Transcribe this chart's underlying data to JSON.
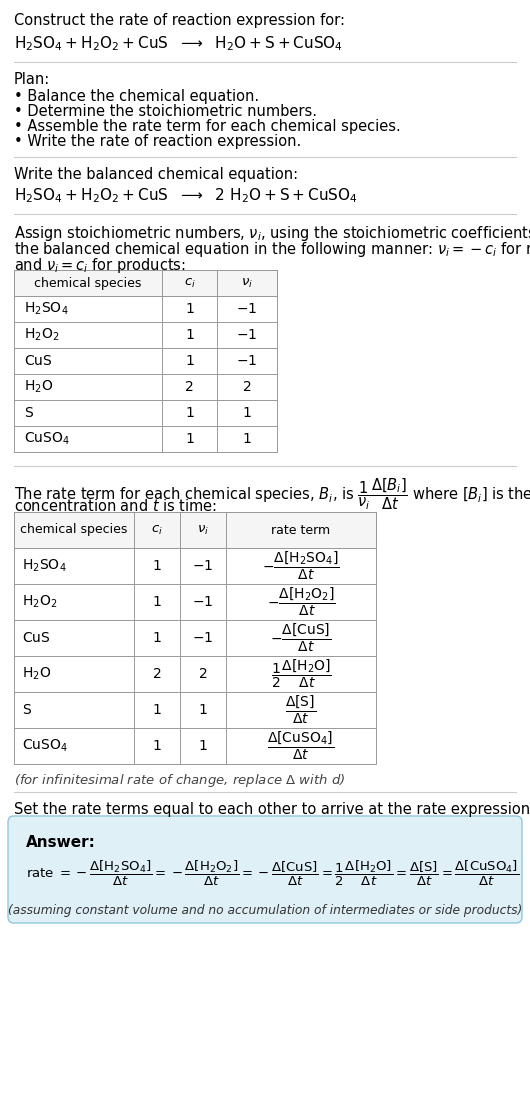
{
  "bg_color": "#ffffff",
  "text_color": "#000000",
  "table_border_color": "#999999",
  "header_bg": "#f5f5f5",
  "answer_box_color": "#dff0f7",
  "answer_box_border": "#90c8dc",
  "chem_formulas": {
    "H_2SO_4": "H_2SO_4",
    "H_2O_2": "H_2O_2",
    "CuS": "CuS",
    "H_2O": "H_2O",
    "S": "S",
    "CuSO_4": "CuSO_4"
  },
  "table1_rows": [
    [
      "H_2SO_4",
      "1",
      "-1"
    ],
    [
      "H_2O_2",
      "1",
      "-1"
    ],
    [
      "CuS",
      "1",
      "-1"
    ],
    [
      "H_2O",
      "2",
      "2"
    ],
    [
      "S",
      "1",
      "1"
    ],
    [
      "CuSO_4",
      "1",
      "1"
    ]
  ],
  "table2_rows": [
    [
      "H_2SO_4",
      "1",
      "-1",
      "neg_H2SO4"
    ],
    [
      "H_2O_2",
      "1",
      "-1",
      "neg_H2O2"
    ],
    [
      "CuS",
      "1",
      "-1",
      "neg_CuS"
    ],
    [
      "H_2O",
      "2",
      "2",
      "half_H2O"
    ],
    [
      "S",
      "1",
      "1",
      "S"
    ],
    [
      "CuSO_4",
      "1",
      "1",
      "CuSO4"
    ]
  ]
}
